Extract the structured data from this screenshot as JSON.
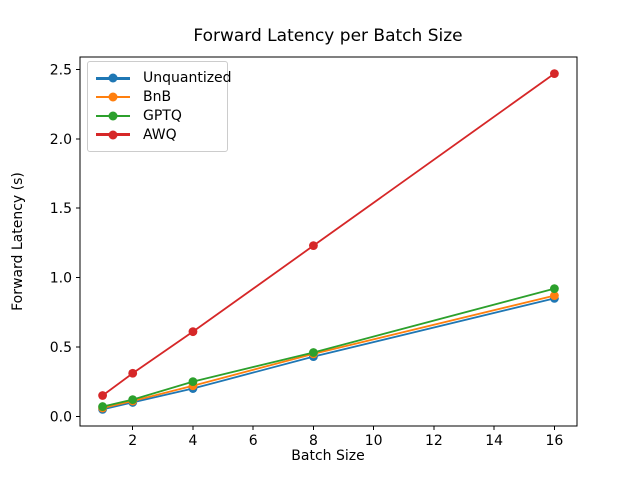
{
  "chart_data": {
    "type": "line",
    "title": "Forward Latency per Batch Size",
    "xlabel": "Batch Size",
    "ylabel": "Forward Latency (s)",
    "x": [
      1,
      2,
      4,
      8,
      16
    ],
    "series": [
      {
        "name": "Unquantized",
        "color": "#1f77b4",
        "values": [
          0.05,
          0.1,
          0.2,
          0.43,
          0.85
        ]
      },
      {
        "name": "BnB",
        "color": "#ff7f0e",
        "values": [
          0.06,
          0.11,
          0.22,
          0.45,
          0.87
        ]
      },
      {
        "name": "GPTQ",
        "color": "#2ca02c",
        "values": [
          0.07,
          0.12,
          0.25,
          0.46,
          0.92
        ]
      },
      {
        "name": "AWQ",
        "color": "#d62728",
        "values": [
          0.15,
          0.31,
          0.61,
          1.23,
          2.47
        ]
      }
    ],
    "xticks": [
      2,
      4,
      6,
      8,
      10,
      12,
      14,
      16
    ],
    "yticks": [
      0.0,
      0.5,
      1.0,
      1.5,
      2.0,
      2.5
    ],
    "ytick_labels": [
      "0.0",
      "0.5",
      "1.0",
      "1.5",
      "2.0",
      "2.5"
    ],
    "xlim": [
      0.25,
      16.75
    ],
    "ylim": [
      -0.07,
      2.59
    ],
    "grid": false,
    "marker": "circle",
    "legend": {
      "position": "upper-left",
      "entries": [
        "Unquantized",
        "BnB",
        "GPTQ",
        "AWQ"
      ]
    }
  }
}
